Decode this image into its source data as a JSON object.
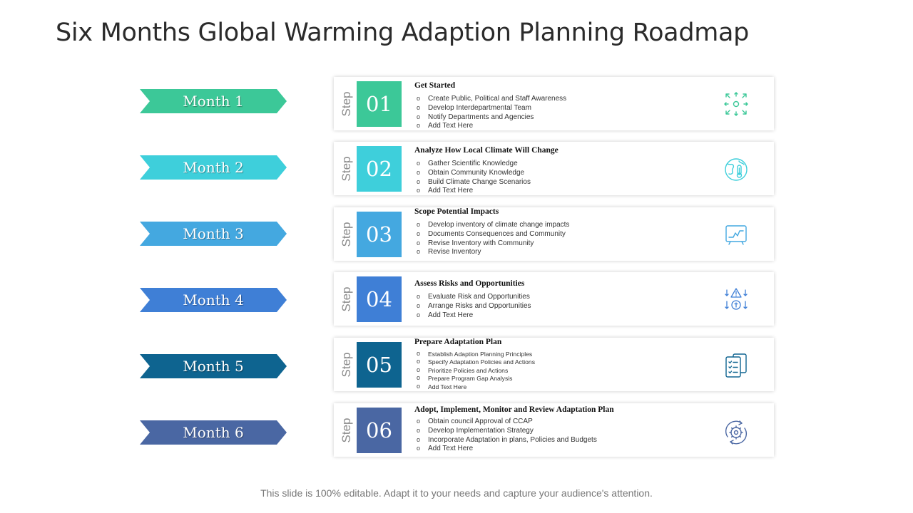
{
  "title": "Six Months Global Warming Adaption Planning Roadmap",
  "footer": "This slide is 100% editable. Adapt it to your needs and capture your audience's attention.",
  "colors": [
    "#3cc898",
    "#3ecfdb",
    "#44a8e0",
    "#3f7fd6",
    "#0e6490",
    "#4a67a3"
  ],
  "step_word": "Step",
  "months": [
    {
      "label": "Month 1"
    },
    {
      "label": "Month 2"
    },
    {
      "label": "Month 3"
    },
    {
      "label": "Month 4"
    },
    {
      "label": "Month 5"
    },
    {
      "label": "Month 6"
    }
  ],
  "steps": [
    {
      "num": "01",
      "heading": "Get Started",
      "icon": "arrows-expand-icon",
      "items": [
        "Create Public, Political and Staff Awareness",
        "Develop Interdepartmental Team",
        "Notify Departments and Agencies",
        "Add Text Here"
      ]
    },
    {
      "num": "02",
      "heading": "Analyze How Local Climate Will Change",
      "icon": "globe-thermometer-icon",
      "items": [
        "Gather Scientific Knowledge",
        "Obtain Community  Knowledge",
        "Build Climate Change Scenarios",
        "Add Text Here"
      ]
    },
    {
      "num": "03",
      "heading": "Scope Potential Impacts",
      "icon": "monitor-chart-icon",
      "items": [
        "Develop inventory of climate change impacts",
        "Documents Consequences and Community",
        "Revise Inventory with Community",
        "Revise Inventory"
      ]
    },
    {
      "num": "04",
      "heading": "Assess Risks and Opportunities",
      "icon": "risk-warning-icon",
      "items": [
        "Evaluate Risk and Opportunities",
        "Arrange Risks and Opportunities",
        "Add Text Here"
      ]
    },
    {
      "num": "05",
      "heading": "Prepare Adaptation Plan",
      "icon": "document-checklist-icon",
      "items": [
        "Establish Adaption Planning Principles",
        "Specify Adaptation Policies and Actions",
        "Prioritize Policies and Actions",
        "Prepare Program Gap Analysis",
        "Add Text Here"
      ]
    },
    {
      "num": "06",
      "heading": "Adopt, Implement, Monitor and Review Adaptation Plan",
      "icon": "gear-cycle-icon",
      "items": [
        "Obtain council Approval of CCAP",
        "Develop Implementation  Strategy",
        "Incorporate Adaptation in plans, Policies and Budgets",
        "Add Text Here"
      ]
    }
  ]
}
